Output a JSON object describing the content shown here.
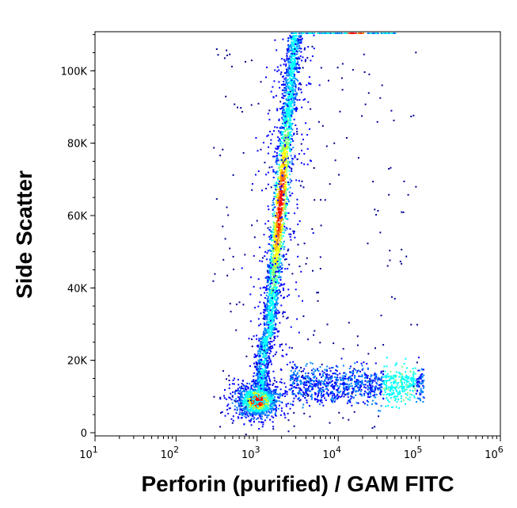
{
  "chart_data": {
    "type": "scatter",
    "title": "",
    "xlabel": "Perforin (purified) / GAM FITC",
    "ylabel": "Side Scatter",
    "x_scale": "log",
    "xlim": [
      10,
      1000000
    ],
    "ylim": [
      0,
      110000
    ],
    "x_ticks": [
      {
        "value": 10,
        "base": "10",
        "exp": "1"
      },
      {
        "value": 100,
        "base": "10",
        "exp": "2"
      },
      {
        "value": 1000,
        "base": "10",
        "exp": "3"
      },
      {
        "value": 10000,
        "base": "10",
        "exp": "4"
      },
      {
        "value": 100000,
        "base": "10",
        "exp": "5"
      },
      {
        "value": 1000000,
        "base": "10",
        "exp": "6"
      }
    ],
    "y_ticks": [
      {
        "value": 0,
        "label": "0"
      },
      {
        "value": 20000,
        "label": "20K"
      },
      {
        "value": 40000,
        "label": "40K"
      },
      {
        "value": 60000,
        "label": "60K"
      },
      {
        "value": 80000,
        "label": "80K"
      },
      {
        "value": 100000,
        "label": "100K"
      }
    ],
    "grid": false,
    "legend": "none",
    "colormap": [
      "#00008f",
      "#0000ff",
      "#0080ff",
      "#00ffff",
      "#80ff80",
      "#ffff00",
      "#ff8000",
      "#ff0000"
    ],
    "populations": [
      {
        "name": "negative",
        "x_center": 1000,
        "y_center": 9000,
        "density": "high"
      },
      {
        "name": "perforin-dim",
        "x_range": [
          1500,
          5000
        ],
        "y_range": [
          15000,
          110000
        ],
        "density": "high"
      },
      {
        "name": "perforin-high",
        "x_range": [
          3000,
          120000
        ],
        "y_range": [
          8000,
          18000
        ],
        "density": "medium"
      }
    ]
  }
}
